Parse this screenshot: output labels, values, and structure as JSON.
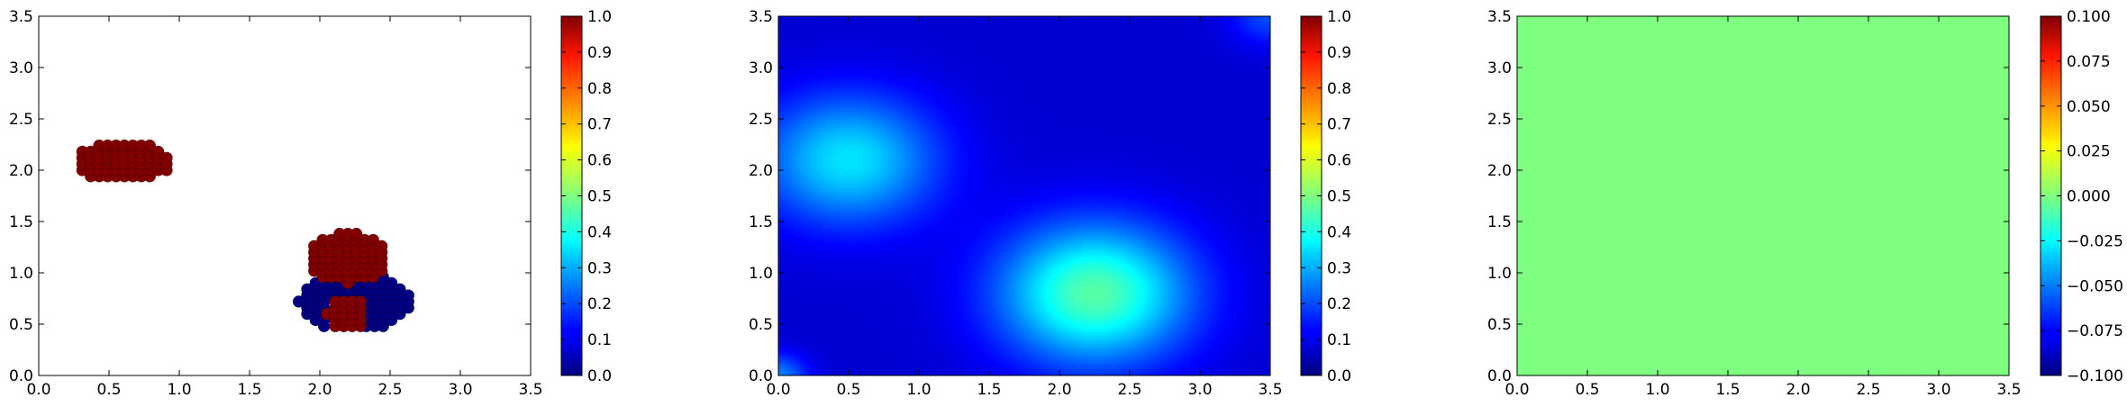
{
  "chart_data": [
    {
      "type": "scatter",
      "xlim": [
        0,
        3.5
      ],
      "ylim": [
        0,
        3.5
      ],
      "xticks": [
        "0.0",
        "0.5",
        "1.0",
        "1.5",
        "2.0",
        "2.5",
        "3.0",
        "3.5"
      ],
      "yticks": [
        "0.0",
        "0.5",
        "1.0",
        "1.5",
        "2.0",
        "2.5",
        "3.0",
        "3.5"
      ],
      "grid": false,
      "colormap": "jet",
      "colorbar": {
        "range": [
          0,
          1
        ],
        "ticks": [
          "0.0",
          "0.1",
          "0.2",
          "0.3",
          "0.4",
          "0.5",
          "0.6",
          "0.7",
          "0.8",
          "0.9",
          "1.0"
        ]
      },
      "clusters": [
        {
          "center": [
            0.6,
            2.08
          ],
          "radius_x": 0.35,
          "radius_y": 0.2,
          "value": 1.0
        },
        {
          "center": [
            2.2,
            1.15
          ],
          "radius_x": 0.3,
          "radius_y": 0.25,
          "value": 1.0
        },
        {
          "center": [
            2.25,
            0.72
          ],
          "radius_x": 0.4,
          "radius_y": 0.3,
          "value": 0.0
        },
        {
          "center": [
            2.2,
            0.6
          ],
          "radius_x": 0.15,
          "radius_y": 0.18,
          "value": 1.0
        },
        {
          "center": [
            0.02,
            0.02
          ],
          "radius_x": 0.03,
          "radius_y": 0.03,
          "value": 0.0
        }
      ]
    },
    {
      "type": "heatmap",
      "xlim": [
        0,
        3.5
      ],
      "ylim": [
        0,
        3.5
      ],
      "xticks": [
        "0.0",
        "0.5",
        "1.0",
        "1.5",
        "2.0",
        "2.5",
        "3.0",
        "3.5"
      ],
      "yticks": [
        "0.0",
        "0.5",
        "1.0",
        "1.5",
        "2.0",
        "2.5",
        "3.0",
        "3.5"
      ],
      "grid": false,
      "colormap": "jet",
      "colorbar": {
        "range": [
          0,
          1
        ],
        "ticks": [
          "0.0",
          "0.1",
          "0.2",
          "0.3",
          "0.4",
          "0.5",
          "0.6",
          "0.7",
          "0.8",
          "0.9",
          "1.0"
        ]
      },
      "background_value": 0.08,
      "peaks": [
        {
          "center": [
            0.5,
            2.1
          ],
          "sigma": 0.45,
          "value": 0.35
        },
        {
          "center": [
            2.25,
            0.8
          ],
          "sigma": 0.48,
          "value": 0.46
        },
        {
          "center": [
            3.5,
            3.5
          ],
          "sigma": 0.2,
          "value": 0.2
        },
        {
          "center": [
            0.0,
            0.0
          ],
          "sigma": 0.15,
          "value": 0.25
        }
      ]
    },
    {
      "type": "heatmap",
      "xlim": [
        0,
        3.5
      ],
      "ylim": [
        0,
        3.5
      ],
      "xticks": [
        "0.0",
        "0.5",
        "1.0",
        "1.5",
        "2.0",
        "2.5",
        "3.0",
        "3.5"
      ],
      "yticks": [
        "0.0",
        "0.5",
        "1.0",
        "1.5",
        "2.0",
        "2.5",
        "3.0",
        "3.5"
      ],
      "grid": false,
      "colormap": "jet",
      "colorbar": {
        "range": [
          -0.1,
          0.1
        ],
        "ticks": [
          "−0.100",
          "−0.075",
          "−0.050",
          "−0.025",
          "0.000",
          "0.025",
          "0.050",
          "0.075",
          "0.100"
        ]
      },
      "uniform_value": 0.0,
      "fill_color": "#7fff7f"
    }
  ]
}
